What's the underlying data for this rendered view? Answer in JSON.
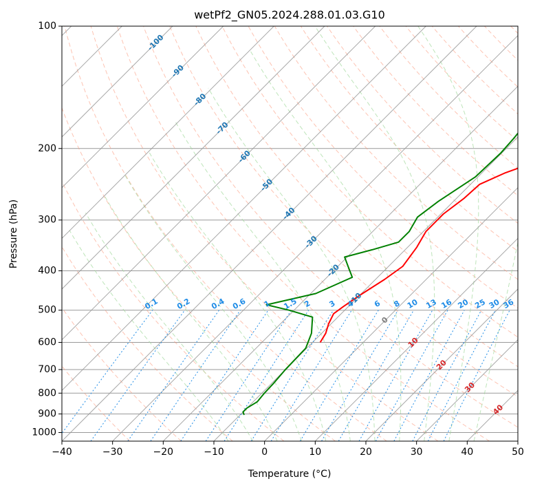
{
  "chart_data": {
    "type": "line",
    "title": "wetPf2_GN05.2024.288.01.03.G10",
    "xlabel": "Temperature (°C)",
    "ylabel": "Pressure (hPa)",
    "xlim": [
      -40,
      50
    ],
    "ylim_hpa": [
      1050,
      100
    ],
    "yscale": "log",
    "xticks": [
      -40,
      -30,
      -20,
      -10,
      0,
      10,
      20,
      30,
      40,
      50
    ],
    "yticks": [
      100,
      200,
      300,
      400,
      500,
      600,
      700,
      800,
      900,
      1000
    ],
    "grid": true,
    "colors": {
      "temperature": "#ff0000",
      "dewpoint": "#008000",
      "isotherm": "#999999",
      "dry_adiabat": "#fc9272",
      "moist_adiabat": "#a1d99b",
      "mixing_ratio": "#1f8ce6",
      "frame": "#000000"
    },
    "series": [
      {
        "key": "temperature",
        "x": [
          -8.5,
          -9.2,
          -10.5,
          -11.5,
          -11.0,
          -10.0,
          -8.2,
          -7.2,
          -8.2,
          -9.5,
          -9.5,
          -8.5,
          -8.2,
          -5.5,
          0.0,
          5.0,
          11.0,
          18.0,
          23.0,
          31.0
        ],
        "y": [
          600,
          570,
          540,
          510,
          490,
          460,
          420,
          390,
          350,
          320,
          290,
          265,
          245,
          230,
          210,
          190,
          165,
          140,
          125,
          100
        ]
      },
      {
        "key": "dewpoint",
        "x": [
          -9.2,
          -10.0,
          -10.0,
          -9.2,
          -9.5,
          -9.6,
          -10.0,
          -10.2,
          -12.0,
          -15.0,
          -21.0,
          -26.5,
          -19.0,
          -15.0,
          -18.0,
          -20.5,
          -16.5,
          -12.8,
          -12.8,
          -14.0,
          -13.0,
          -10.5,
          -10.2,
          -10.5,
          -11.0,
          -11.2,
          -9.0,
          -8.2,
          -6.0,
          -2.5
        ],
        "y": [
          905,
          890,
          870,
          840,
          800,
          760,
          700,
          620,
          570,
          520,
          500,
          485,
          455,
          415,
          390,
          370,
          355,
          340,
          320,
          295,
          270,
          235,
          205,
          190,
          175,
          160,
          140,
          125,
          110,
          100
        ]
      }
    ],
    "annotations": {
      "temperature_line_labels": [
        {
          "t": -100,
          "text": "-100"
        },
        {
          "t": -90,
          "text": "-90"
        },
        {
          "t": -80,
          "text": "-80"
        },
        {
          "t": -70,
          "text": "-70"
        },
        {
          "t": -60,
          "text": "-60"
        },
        {
          "t": -50,
          "text": "-50"
        },
        {
          "t": -40,
          "text": "-40"
        },
        {
          "t": -30,
          "text": "-30"
        },
        {
          "t": -20,
          "text": "-20"
        },
        {
          "t": -10,
          "text": "-10"
        },
        {
          "t": 0,
          "text": "0"
        },
        {
          "t": 10,
          "text": "10"
        },
        {
          "t": 20,
          "text": "20"
        },
        {
          "t": 30,
          "text": "30"
        },
        {
          "t": 40,
          "text": "40"
        }
      ],
      "mixing_ratio_labels": [
        {
          "w": 0.1,
          "text": "0.1"
        },
        {
          "w": 0.2,
          "text": "0.2"
        },
        {
          "w": 0.4,
          "text": "0.4"
        },
        {
          "w": 0.6,
          "text": "0.6"
        },
        {
          "w": 1,
          "text": "1"
        },
        {
          "w": 1.5,
          "text": "1.5"
        },
        {
          "w": 2,
          "text": "2"
        },
        {
          "w": 3,
          "text": "3"
        },
        {
          "w": 4,
          "text": "4"
        },
        {
          "w": 6,
          "text": "6"
        },
        {
          "w": 8,
          "text": "8"
        },
        {
          "w": 10,
          "text": "10"
        },
        {
          "w": 13,
          "text": "13"
        },
        {
          "w": 16,
          "text": "16"
        },
        {
          "w": 20,
          "text": "20"
        },
        {
          "w": 25,
          "text": "25"
        },
        {
          "w": 30,
          "text": "30"
        },
        {
          "w": 36,
          "text": "36"
        }
      ]
    }
  }
}
